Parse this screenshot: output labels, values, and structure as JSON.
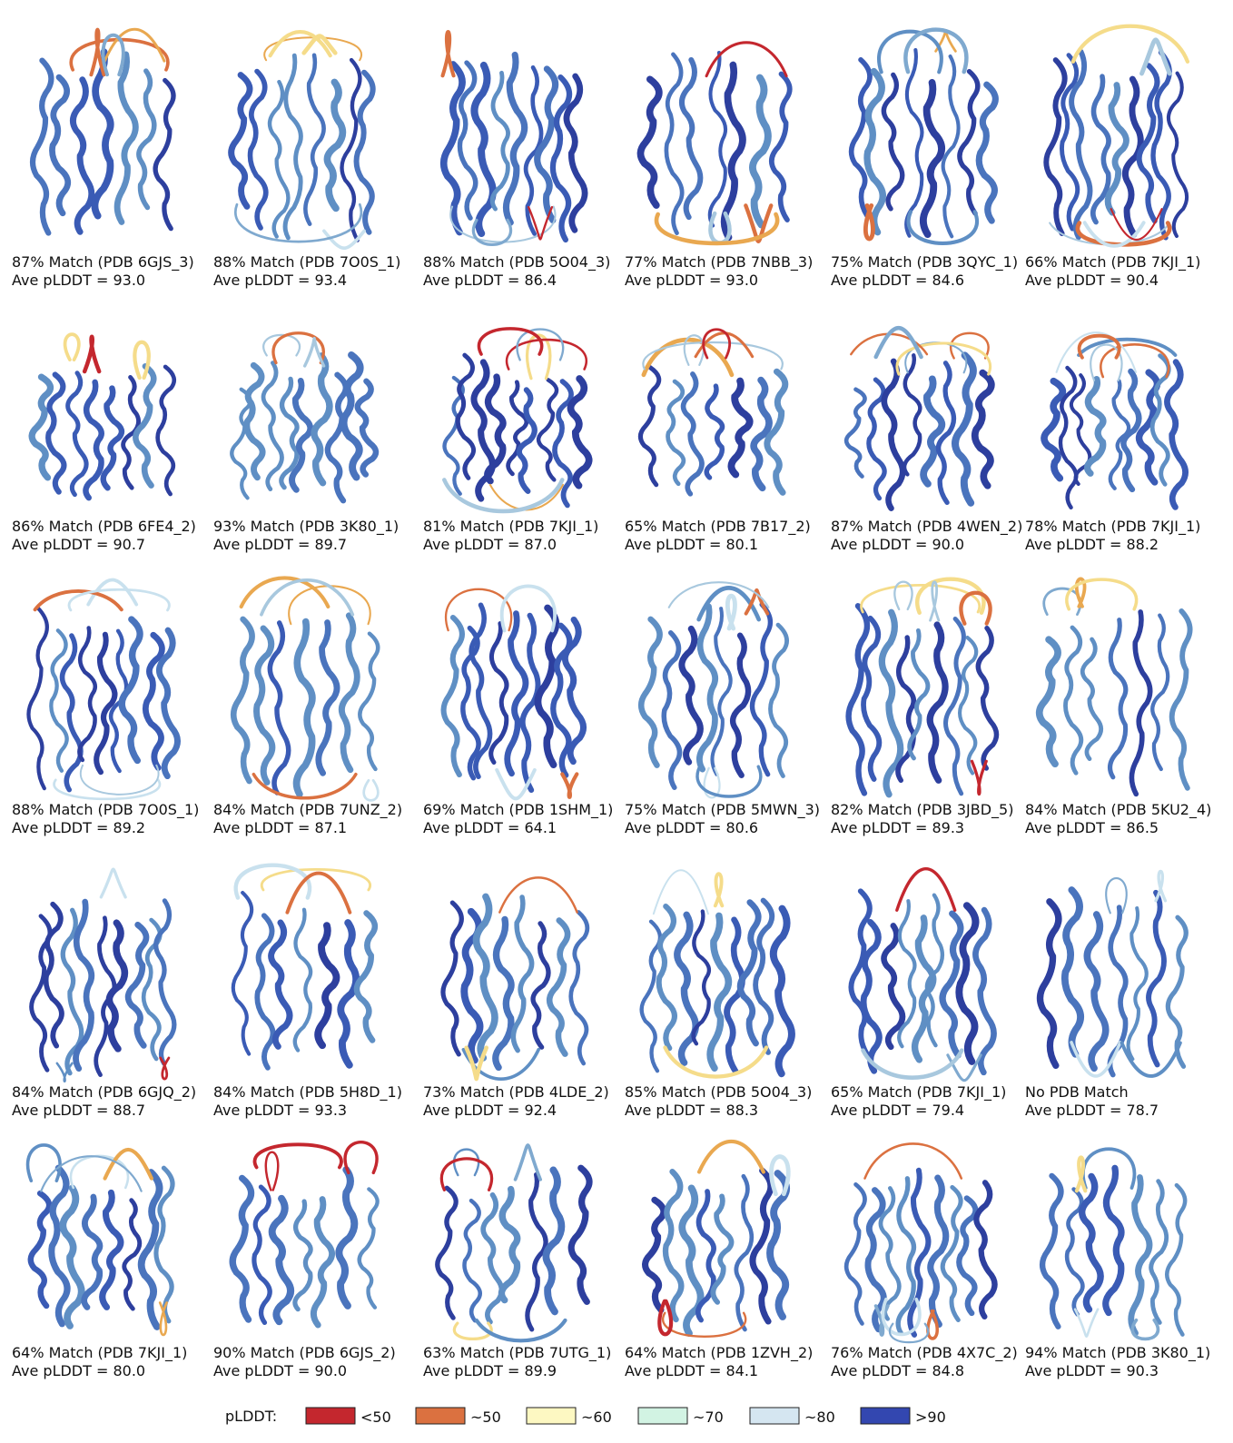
{
  "panels": [
    {
      "match": "87% Match (PDB 6GJS_3)",
      "plddt": "Ave pLDDT = 93.0"
    },
    {
      "match": "88% Match (PDB 7O0S_1)",
      "plddt": "Ave pLDDT = 93.4"
    },
    {
      "match": "88% Match (PDB 5O04_3)",
      "plddt": "Ave pLDDT = 86.4"
    },
    {
      "match": "77% Match (PDB 7NBB_3)",
      "plddt": "Ave pLDDT = 93.0"
    },
    {
      "match": "75% Match (PDB 3QYC_1)",
      "plddt": "Ave pLDDT = 84.6"
    },
    {
      "match": "66% Match (PDB 7KJI_1)",
      "plddt": "Ave pLDDT = 90.4"
    },
    {
      "match": "86% Match (PDB 6FE4_2)",
      "plddt": "Ave pLDDT = 90.7"
    },
    {
      "match": "93% Match (PDB 3K80_1)",
      "plddt": "Ave pLDDT = 89.7"
    },
    {
      "match": "81% Match (PDB 7KJI_1)",
      "plddt": "Ave pLDDT = 87.0"
    },
    {
      "match": "65% Match (PDB 7B17_2)",
      "plddt": "Ave pLDDT = 80.1"
    },
    {
      "match": "87% Match (PDB 4WEN_2)",
      "plddt": "Ave pLDDT = 90.0"
    },
    {
      "match": "78% Match (PDB 7KJI_1)",
      "plddt": "Ave pLDDT = 88.2"
    },
    {
      "match": "88% Match (PDB 7O0S_1)",
      "plddt": "Ave pLDDT = 89.2"
    },
    {
      "match": "84% Match (PDB 7UNZ_2)",
      "plddt": "Ave pLDDT = 87.1"
    },
    {
      "match": "69% Match (PDB 1SHM_1)",
      "plddt": "Ave pLDDT = 64.1"
    },
    {
      "match": "75% Match (PDB 5MWN_3)",
      "plddt": "Ave pLDDT = 80.6"
    },
    {
      "match": "82% Match (PDB 3JBD_5)",
      "plddt": "Ave pLDDT = 89.3"
    },
    {
      "match": "84% Match (PDB 5KU2_4)",
      "plddt": "Ave pLDDT = 86.5"
    },
    {
      "match": "84% Match (PDB 6GJQ_2)",
      "plddt": "Ave pLDDT = 88.7"
    },
    {
      "match": "84% Match (PDB 5H8D_1)",
      "plddt": "Ave pLDDT = 93.3"
    },
    {
      "match": "73% Match (PDB 4LDE_2)",
      "plddt": "Ave pLDDT = 92.4"
    },
    {
      "match": "85% Match (PDB 5O04_3)",
      "plddt": "Ave pLDDT = 88.3"
    },
    {
      "match": "65% Match (PDB 7KJI_1)",
      "plddt": "Ave pLDDT = 79.4"
    },
    {
      "match": "No PDB Match",
      "plddt": "Ave pLDDT = 78.7"
    },
    {
      "match": "64% Match (PDB 7KJI_1)",
      "plddt": "Ave pLDDT = 80.0"
    },
    {
      "match": "90% Match (PDB 6GJS_2)",
      "plddt": "Ave pLDDT = 90.0"
    },
    {
      "match": "63% Match (PDB 7UTG_1)",
      "plddt": "Ave pLDDT = 89.9"
    },
    {
      "match": "64% Match (PDB 1ZVH_2)",
      "plddt": "Ave pLDDT = 84.1"
    },
    {
      "match": "76% Match (PDB 4X7C_2)",
      "plddt": "Ave pLDDT = 84.8"
    },
    {
      "match": "94% Match (PDB 3K80_1)",
      "plddt": "Ave pLDDT = 90.3"
    }
  ],
  "legend": {
    "title": "pLDDT:",
    "items": [
      {
        "label": "<50",
        "color": "#c4272e"
      },
      {
        "label": "~50",
        "color": "#db7140"
      },
      {
        "label": "~60",
        "color": "#fdf8c2"
      },
      {
        "label": "~70",
        "color": "#d2f3e3"
      },
      {
        "label": "~80",
        "color": "#d5e6f1"
      },
      {
        "label": ">90",
        "color": "#3347b0"
      }
    ]
  }
}
